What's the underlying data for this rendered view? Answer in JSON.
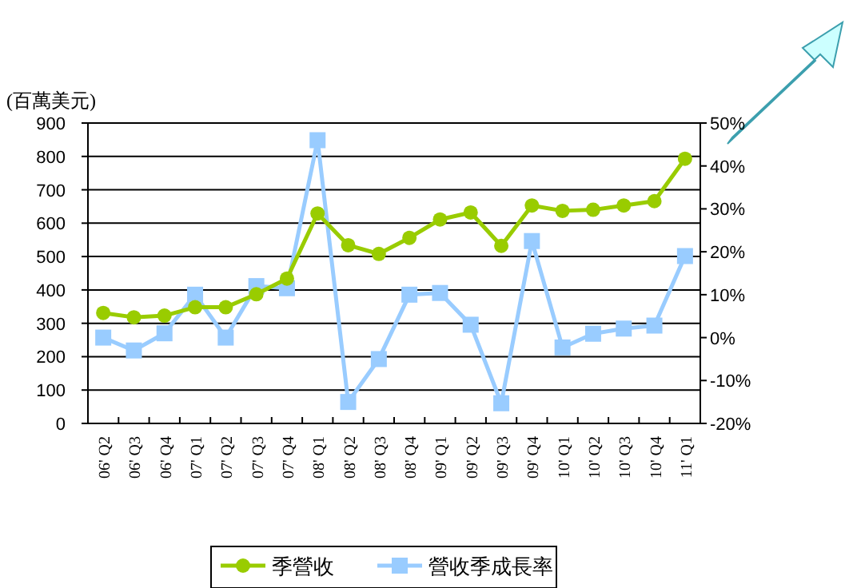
{
  "chart_data": {
    "type": "line",
    "ylabel": "(百萬美元)",
    "categories": [
      "06' Q2",
      "06' Q3",
      "06' Q4",
      "07' Q1",
      "07' Q2",
      "07' Q3",
      "07' Q4",
      "08' Q1",
      "08' Q2",
      "08' Q3",
      "08' Q4",
      "09' Q1",
      "09' Q2",
      "09' Q3",
      "09' Q4",
      "10' Q1",
      "10' Q2",
      "10' Q3",
      "10' Q4",
      "11' Q1"
    ],
    "series": [
      {
        "name": "季營收",
        "color": "#99cc00",
        "marker": "circle",
        "values": [
          331,
          318,
          323,
          348,
          348,
          387,
          434,
          629,
          534,
          508,
          556,
          611,
          632,
          532,
          653,
          637,
          640,
          653,
          666,
          793
        ]
      },
      {
        "name": "營收季成長率",
        "color": "#99ccff",
        "marker": "square",
        "axis": "y2",
        "values": [
          0,
          -3,
          1,
          10,
          0,
          12,
          11.5,
          46,
          -15,
          -5,
          10,
          10.4,
          3,
          -15.3,
          22.5,
          -2.3,
          0.9,
          2.1,
          2.8,
          19
        ]
      }
    ],
    "ylim": [
      0,
      900
    ],
    "yticks": [
      0,
      100,
      200,
      300,
      400,
      500,
      600,
      700,
      800,
      900
    ],
    "y2lim": [
      -20,
      50
    ],
    "y2ticks": [
      {
        "value": -20,
        "label": "-20%"
      },
      {
        "value": -10,
        "label": "-10%"
      },
      {
        "value": 0,
        "label": "0%"
      },
      {
        "value": 10,
        "label": "10%"
      },
      {
        "value": 20,
        "label": "20%"
      },
      {
        "value": 30,
        "label": "30%"
      },
      {
        "value": 40,
        "label": "40%"
      },
      {
        "value": 50,
        "label": "50%"
      }
    ],
    "grid": "y",
    "legend": "bottom",
    "line_style": "solid"
  }
}
